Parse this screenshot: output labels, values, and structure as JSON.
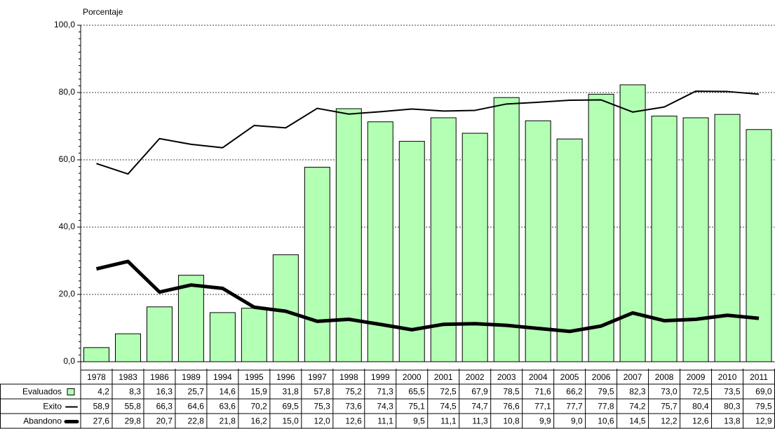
{
  "chart_data": {
    "type": "bar",
    "ylabel": "Porcentaje",
    "categories": [
      "1978",
      "1983",
      "1986",
      "1989",
      "1994",
      "1995",
      "1996",
      "1997",
      "1998",
      "1999",
      "2000",
      "2001",
      "2002",
      "2003",
      "2004",
      "2005",
      "2006",
      "2007",
      "2008",
      "2009",
      "2010",
      "2011"
    ],
    "ylim": [
      0,
      100
    ],
    "yticks": [
      {
        "value": 0,
        "label": "0,0"
      },
      {
        "value": 20,
        "label": "20,0"
      },
      {
        "value": 40,
        "label": "40,0"
      },
      {
        "value": 60,
        "label": "60,0"
      },
      {
        "value": 80,
        "label": "80,0"
      },
      {
        "value": 100,
        "label": "100,0"
      }
    ],
    "grid": true,
    "series": [
      {
        "name": "Evaluados",
        "type": "bar",
        "color": "#b3ffb3",
        "values": [
          4.2,
          8.3,
          16.3,
          25.7,
          14.6,
          15.9,
          31.8,
          57.8,
          75.2,
          71.3,
          65.5,
          72.5,
          67.9,
          78.5,
          71.6,
          66.2,
          79.5,
          82.3,
          73.0,
          72.5,
          73.5,
          69.0
        ],
        "value_labels": [
          "4,2",
          "8,3",
          "16,3",
          "25,7",
          "14,6",
          "15,9",
          "31,8",
          "57,8",
          "75,2",
          "71,3",
          "65,5",
          "72,5",
          "67,9",
          "78,5",
          "71,6",
          "66,2",
          "79,5",
          "82,3",
          "73,0",
          "72,5",
          "73,5",
          "69,0"
        ]
      },
      {
        "name": "Exito",
        "type": "line",
        "color": "#000000",
        "width": 2,
        "values": [
          58.9,
          55.8,
          66.3,
          64.6,
          63.6,
          70.2,
          69.5,
          75.3,
          73.6,
          74.3,
          75.1,
          74.5,
          74.7,
          76.6,
          77.1,
          77.7,
          77.8,
          74.2,
          75.7,
          80.4,
          80.3,
          79.5
        ],
        "value_labels": [
          "58,9",
          "55,8",
          "66,3",
          "64,6",
          "63,6",
          "70,2",
          "69,5",
          "75,3",
          "73,6",
          "74,3",
          "75,1",
          "74,5",
          "74,7",
          "76,6",
          "77,1",
          "77,7",
          "77,8",
          "74,2",
          "75,7",
          "80,4",
          "80,3",
          "79,5"
        ]
      },
      {
        "name": "Abandono",
        "type": "line",
        "color": "#000000",
        "width": 5,
        "values": [
          27.6,
          29.8,
          20.7,
          22.8,
          21.8,
          16.2,
          15.0,
          12.0,
          12.6,
          11.1,
          9.5,
          11.1,
          11.3,
          10.8,
          9.9,
          9.0,
          10.6,
          14.5,
          12.2,
          12.6,
          13.8,
          12.9
        ],
        "value_labels": [
          "27,6",
          "29,8",
          "20,7",
          "22,8",
          "21,8",
          "16,2",
          "15,0",
          "12,0",
          "12,6",
          "11,1",
          "9,5",
          "11,1",
          "11,3",
          "10,8",
          "9,9",
          "9,0",
          "10,6",
          "14,5",
          "12,2",
          "12,6",
          "13,8",
          "12,9"
        ]
      }
    ]
  }
}
